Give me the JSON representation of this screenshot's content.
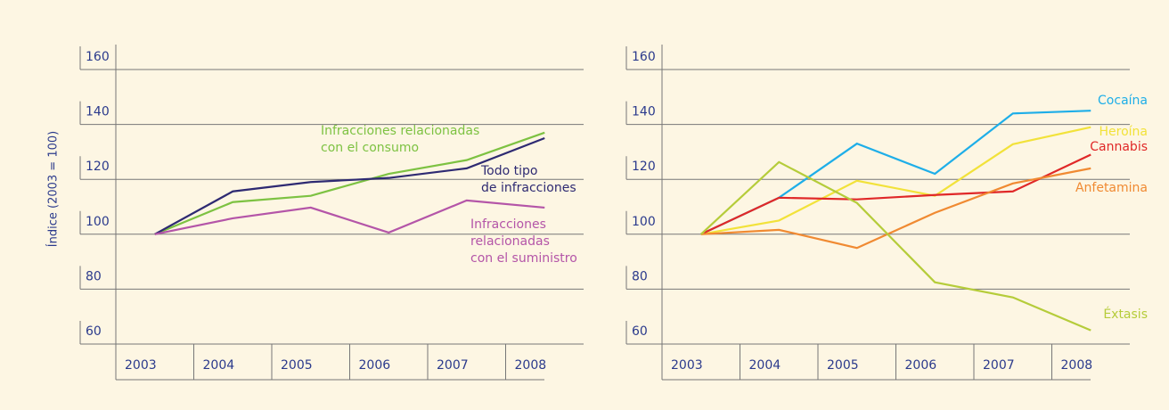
{
  "chart_data": [
    {
      "type": "line",
      "y_label": "Índice (2003 = 100)",
      "categories": [
        "2003",
        "2004",
        "2005",
        "2006",
        "2007",
        "2008"
      ],
      "ylim": [
        60,
        160
      ],
      "yticks": [
        60,
        80,
        100,
        120,
        140,
        160
      ],
      "grid": true,
      "series": [
        {
          "name": "Infracciones relacionadas\ncon el consumo",
          "color": "#7dc242",
          "values": [
            100,
            111.7,
            114,
            122,
            127,
            137
          ]
        },
        {
          "name": "Todo tipo\nde infracciones",
          "color": "#2e2a72",
          "values": [
            100,
            115.6,
            119,
            120.5,
            124,
            135
          ]
        },
        {
          "name": "Infracciones\nrelacionadas\ncon el suministro",
          "color": "#b455a8",
          "values": [
            100,
            105.8,
            109.7,
            100.6,
            112.3,
            109.7
          ]
        }
      ]
    },
    {
      "type": "line",
      "categories": [
        "2003",
        "2004",
        "2005",
        "2006",
        "2007",
        "2008"
      ],
      "ylim": [
        60,
        160
      ],
      "yticks": [
        60,
        80,
        100,
        120,
        140,
        160
      ],
      "grid": true,
      "series": [
        {
          "name": "Cocaína",
          "color": "#1eaee8",
          "values": [
            100,
            113.3,
            133,
            122,
            144,
            145
          ]
        },
        {
          "name": "Heroína",
          "color": "#f2e23a",
          "values": [
            100,
            105,
            119.5,
            114,
            132.8,
            139
          ]
        },
        {
          "name": "Cannabis",
          "color": "#e02828",
          "values": [
            100,
            113.3,
            112.7,
            114.3,
            115.6,
            129
          ]
        },
        {
          "name": "Anfetamina",
          "color": "#f08a32",
          "values": [
            100,
            101.6,
            95,
            107.8,
            118.5,
            124
          ]
        },
        {
          "name": "Éxtasis",
          "color": "#b5cc3a",
          "values": [
            100,
            126.3,
            111.4,
            82.5,
            77,
            65
          ]
        }
      ]
    }
  ]
}
